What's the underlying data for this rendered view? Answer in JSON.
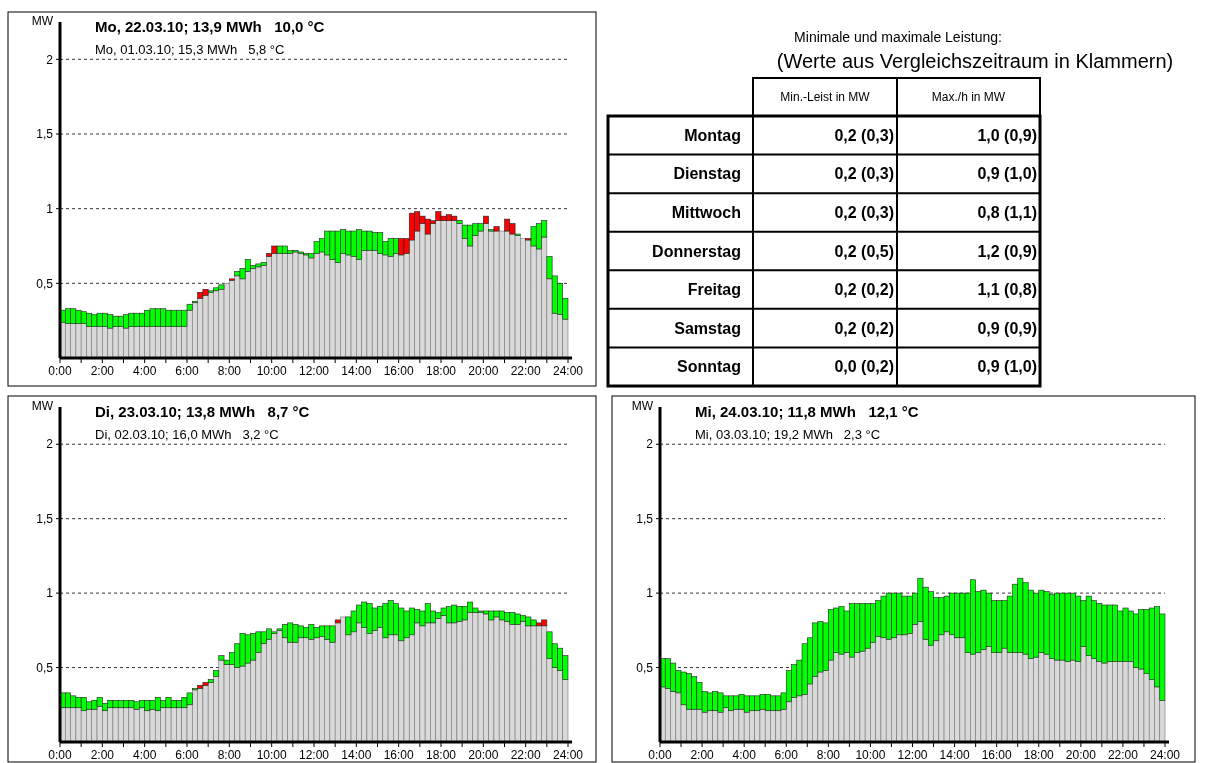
{
  "chart_data": [
    {
      "type": "bar",
      "stacked": true,
      "title": "Mo, 22.03.10; 13,9 MWh   10,0 °C",
      "subtitle": "Mo, 01.03.10; 15,3 MWh   5,8 °C",
      "ylabel": "MW",
      "x": [
        0.125,
        0.375,
        0.625,
        0.875,
        1.125,
        1.375,
        1.625,
        1.875,
        2.125,
        2.375,
        2.625,
        2.875,
        3.125,
        3.375,
        3.625,
        3.875,
        4.125,
        4.375,
        4.625,
        4.875,
        5.125,
        5.375,
        5.625,
        5.875,
        6.125,
        6.375,
        6.625,
        6.875,
        7.125,
        7.375,
        7.625,
        7.875,
        8.125,
        8.375,
        8.625,
        8.875,
        9.125,
        9.375,
        9.625,
        9.875,
        10.125,
        10.375,
        10.625,
        10.875,
        11.125,
        11.375,
        11.625,
        11.875,
        12.125,
        12.375,
        12.625,
        12.875,
        13.125,
        13.375,
        13.625,
        13.875,
        14.125,
        14.375,
        14.625,
        14.875,
        15.125,
        15.375,
        15.625,
        15.875,
        16.125,
        16.375,
        16.625,
        16.875,
        17.125,
        17.375,
        17.625,
        17.875,
        18.125,
        18.375,
        18.625,
        18.875,
        19.125,
        19.375,
        19.625,
        19.875,
        20.125,
        20.375,
        20.625,
        20.875,
        21.125,
        21.375,
        21.625,
        21.875,
        22.125,
        22.375,
        22.625,
        22.875,
        23.125,
        23.375,
        23.625,
        23.875
      ],
      "series": [
        {
          "color": "#d9d9d9",
          "values": [
            0.24,
            0.23,
            0.23,
            0.23,
            0.23,
            0.21,
            0.21,
            0.21,
            0.21,
            0.2,
            0.21,
            0.21,
            0.2,
            0.21,
            0.21,
            0.21,
            0.21,
            0.21,
            0.21,
            0.21,
            0.21,
            0.21,
            0.21,
            0.21,
            0.32,
            0.37,
            0.4,
            0.42,
            0.44,
            0.45,
            0.46,
            0.5,
            0.52,
            0.55,
            0.53,
            0.58,
            0.6,
            0.61,
            0.62,
            0.68,
            0.7,
            0.7,
            0.7,
            0.7,
            0.71,
            0.7,
            0.69,
            0.67,
            0.7,
            0.71,
            0.69,
            0.66,
            0.64,
            0.7,
            0.69,
            0.68,
            0.66,
            0.72,
            0.72,
            0.72,
            0.7,
            0.69,
            0.68,
            0.7,
            0.69,
            0.7,
            0.79,
            0.85,
            0.9,
            0.83,
            0.9,
            0.92,
            0.92,
            0.92,
            0.92,
            0.9,
            0.8,
            0.75,
            0.82,
            0.85,
            0.9,
            0.85,
            0.85,
            0.85,
            0.85,
            0.83,
            0.82,
            0.8,
            0.79,
            0.75,
            0.73,
            0.81,
            0.53,
            0.3,
            0.29,
            0.26
          ]
        },
        {
          "color": "#00ff00",
          "values": [
            0.08,
            0.1,
            0.1,
            0.09,
            0.08,
            0.09,
            0.08,
            0.09,
            0.09,
            0.09,
            0.07,
            0.07,
            0.09,
            0.09,
            0.09,
            0.09,
            0.11,
            0.12,
            0.12,
            0.12,
            0.11,
            0.11,
            0.11,
            0.11,
            0.04,
            0.01,
            null,
            null,
            0.01,
            0.02,
            0.03,
            null,
            null,
            0.03,
            0.07,
            0.08,
            0.02,
            0.02,
            0.02,
            null,
            null,
            0.05,
            0.05,
            0.02,
            0.01,
            0.01,
            0.01,
            0.03,
            0.08,
            0.09,
            0.16,
            0.19,
            0.21,
            0.16,
            0.16,
            0.17,
            0.2,
            0.13,
            0.13,
            0.12,
            0.14,
            0.09,
            0.12,
            0.1,
            null,
            null,
            null,
            null,
            null,
            null,
            null,
            null,
            null,
            null,
            null,
            0.02,
            0.09,
            0.14,
            0.08,
            0.05,
            null,
            0.01,
            null,
            null,
            null,
            null,
            0.01,
            null,
            null,
            0.13,
            0.17,
            0.11,
            0.15,
            0.25,
            0.21,
            0.14
          ]
        },
        {
          "color": "#ff0000",
          "values": [
            null,
            null,
            null,
            null,
            null,
            null,
            null,
            null,
            null,
            null,
            null,
            null,
            null,
            null,
            null,
            null,
            null,
            null,
            null,
            null,
            null,
            null,
            null,
            null,
            null,
            null,
            0.04,
            0.04,
            null,
            null,
            null,
            null,
            0.01,
            null,
            null,
            null,
            null,
            null,
            null,
            0.02,
            0.05,
            null,
            null,
            null,
            null,
            null,
            null,
            null,
            null,
            null,
            null,
            null,
            null,
            null,
            null,
            null,
            null,
            null,
            null,
            null,
            null,
            null,
            null,
            null,
            0.11,
            0.1,
            0.18,
            0.13,
            0.05,
            0.1,
            0.02,
            0.06,
            0.03,
            0.04,
            0.03,
            null,
            null,
            null,
            null,
            null,
            0.05,
            null,
            0.03,
            null,
            0.08,
            0.07,
            null,
            null,
            0.01,
            null,
            null,
            null,
            null,
            null,
            null,
            null
          ]
        }
      ],
      "xlim": [
        0,
        24
      ],
      "ylim": [
        0,
        2.25
      ],
      "xticks": [
        {
          "value": 0,
          "label": "0:00"
        },
        {
          "value": 1,
          "label": null
        },
        {
          "value": 2,
          "label": "2:00"
        },
        {
          "value": 3,
          "label": null
        },
        {
          "value": 4,
          "label": "4:00"
        },
        {
          "value": 5,
          "label": null
        },
        {
          "value": 6,
          "label": "6:00"
        },
        {
          "value": 7,
          "label": null
        },
        {
          "value": 8,
          "label": "8:00"
        },
        {
          "value": 9,
          "label": null
        },
        {
          "value": 10,
          "label": "10:00"
        },
        {
          "value": 11,
          "label": null
        },
        {
          "value": 12,
          "label": "12:00"
        },
        {
          "value": 13,
          "label": null
        },
        {
          "value": 14,
          "label": "14:00"
        },
        {
          "value": 15,
          "label": null
        },
        {
          "value": 16,
          "label": "16:00"
        },
        {
          "value": 17,
          "label": null
        },
        {
          "value": 18,
          "label": "18:00"
        },
        {
          "value": 19,
          "label": null
        },
        {
          "value": 20,
          "label": "20:00"
        },
        {
          "value": 21,
          "label": null
        },
        {
          "value": 22,
          "label": "22:00"
        },
        {
          "value": 23,
          "label": null
        },
        {
          "value": 24,
          "label": "24:00"
        }
      ],
      "yticks": [
        {
          "value": 0.5,
          "label": "0,5"
        },
        {
          "value": 1,
          "label": "1"
        },
        {
          "value": 1.5,
          "label": "1,5"
        },
        {
          "value": 2,
          "label": "2"
        }
      ],
      "grid": "y"
    },
    {
      "type": "other",
      "title": "Minimale und maximale Leistung:",
      "subtitle": "(Werte aus Vergleichszeitraum in Klammern)",
      "categories": [
        "Min.-Leist in MW",
        "Max./h in MW"
      ],
      "y_categories": [
        "Montag",
        "Dienstag",
        "Mittwoch",
        "Donnerstag",
        "Freitag",
        "Samstag",
        "Sonntag"
      ],
      "cell_labels": [
        [
          "0,2 (0,3)",
          "1,0 (0,9)"
        ],
        [
          "0,2 (0,3)",
          "0,9 (1,0)"
        ],
        [
          "0,2 (0,3)",
          "0,8 (1,1)"
        ],
        [
          "0,2 (0,5)",
          "1,2 (0,9)"
        ],
        [
          "0,2 (0,2)",
          "1,1 (0,8)"
        ],
        [
          "0,2 (0,2)",
          "0,9 (0,9)"
        ],
        [
          "0,0 (0,2)",
          "0,9 (1,0)"
        ]
      ]
    },
    {
      "type": "bar",
      "stacked": true,
      "title": "Di, 23.03.10; 13,8 MWh   8,7 °C",
      "subtitle": "Di, 02.03.10; 16,0 MWh   3,2 °C",
      "ylabel": "MW",
      "x": [
        0.125,
        0.375,
        0.625,
        0.875,
        1.125,
        1.375,
        1.625,
        1.875,
        2.125,
        2.375,
        2.625,
        2.875,
        3.125,
        3.375,
        3.625,
        3.875,
        4.125,
        4.375,
        4.625,
        4.875,
        5.125,
        5.375,
        5.625,
        5.875,
        6.125,
        6.375,
        6.625,
        6.875,
        7.125,
        7.375,
        7.625,
        7.875,
        8.125,
        8.375,
        8.625,
        8.875,
        9.125,
        9.375,
        9.625,
        9.875,
        10.125,
        10.375,
        10.625,
        10.875,
        11.125,
        11.375,
        11.625,
        11.875,
        12.125,
        12.375,
        12.625,
        12.875,
        13.125,
        13.375,
        13.625,
        13.875,
        14.125,
        14.375,
        14.625,
        14.875,
        15.125,
        15.375,
        15.625,
        15.875,
        16.125,
        16.375,
        16.625,
        16.875,
        17.125,
        17.375,
        17.625,
        17.875,
        18.125,
        18.375,
        18.625,
        18.875,
        19.125,
        19.375,
        19.625,
        19.875,
        20.125,
        20.375,
        20.625,
        20.875,
        21.125,
        21.375,
        21.625,
        21.875,
        22.125,
        22.375,
        22.625,
        22.875,
        23.125,
        23.375,
        23.625,
        23.875
      ],
      "series": [
        {
          "color": "#d9d9d9",
          "values": [
            0.23,
            0.23,
            0.23,
            0.23,
            0.21,
            0.22,
            0.22,
            0.24,
            0.21,
            0.23,
            0.23,
            0.23,
            0.23,
            0.23,
            0.22,
            0.23,
            0.21,
            0.22,
            0.21,
            0.23,
            0.23,
            0.23,
            0.23,
            0.23,
            0.25,
            0.35,
            0.36,
            0.38,
            0.4,
            0.44,
            0.55,
            0.52,
            0.52,
            0.5,
            0.51,
            0.53,
            0.55,
            0.6,
            0.66,
            0.69,
            0.73,
            0.75,
            0.7,
            0.67,
            0.67,
            0.7,
            0.7,
            0.69,
            0.7,
            0.71,
            0.69,
            0.67,
            0.8,
            0.84,
            0.72,
            0.74,
            0.8,
            0.77,
            0.73,
            0.75,
            0.77,
            0.7,
            0.72,
            0.72,
            0.68,
            0.7,
            0.72,
            0.8,
            0.78,
            0.8,
            0.8,
            0.83,
            0.85,
            0.8,
            0.8,
            0.81,
            0.82,
            0.87,
            0.87,
            0.87,
            0.86,
            0.82,
            0.84,
            0.82,
            0.81,
            0.79,
            0.79,
            0.81,
            0.78,
            0.78,
            0.78,
            0.78,
            0.56,
            0.5,
            0.48,
            0.42
          ]
        },
        {
          "color": "#00ff00",
          "values": [
            0.1,
            0.1,
            0.08,
            0.07,
            0.09,
            0.05,
            0.06,
            0.06,
            0.05,
            0.05,
            0.05,
            0.05,
            0.05,
            0.05,
            0.05,
            0.05,
            0.07,
            0.06,
            0.09,
            0.05,
            0.07,
            0.05,
            0.05,
            0.07,
            0.08,
            0.01,
            null,
            null,
            0.02,
            0.04,
            0.03,
            0.03,
            0.08,
            0.16,
            0.22,
            0.19,
            0.18,
            0.14,
            0.08,
            0.07,
            0.01,
            0.01,
            0.09,
            0.13,
            0.12,
            0.08,
            0.07,
            0.1,
            0.07,
            0.07,
            0.09,
            0.11,
            null,
            null,
            0.12,
            0.14,
            0.12,
            0.17,
            0.2,
            0.15,
            0.14,
            0.23,
            0.23,
            0.21,
            0.22,
            0.18,
            0.18,
            0.09,
            0.1,
            0.13,
            0.08,
            0.04,
            0.05,
            0.11,
            0.12,
            0.1,
            0.09,
            0.07,
            0.03,
            0.01,
            0.02,
            0.06,
            0.04,
            0.06,
            0.06,
            0.08,
            0.07,
            0.04,
            0.06,
            0.04,
            null,
            null,
            0.18,
            0.16,
            0.15,
            0.16
          ]
        },
        {
          "color": "#ff0000",
          "values": [
            null,
            null,
            null,
            null,
            null,
            null,
            null,
            null,
            null,
            null,
            null,
            null,
            null,
            null,
            null,
            null,
            null,
            null,
            null,
            null,
            null,
            null,
            null,
            null,
            null,
            null,
            0.02,
            0.02,
            null,
            null,
            null,
            null,
            null,
            null,
            null,
            null,
            null,
            null,
            null,
            null,
            null,
            null,
            null,
            null,
            null,
            null,
            null,
            null,
            null,
            null,
            null,
            null,
            0.02,
            null,
            null,
            null,
            null,
            null,
            null,
            null,
            null,
            null,
            null,
            null,
            null,
            null,
            null,
            null,
            null,
            null,
            null,
            null,
            null,
            null,
            null,
            null,
            null,
            null,
            null,
            null,
            null,
            null,
            null,
            null,
            null,
            null,
            null,
            null,
            null,
            null,
            0.02,
            0.04,
            null,
            null,
            null,
            null
          ]
        }
      ],
      "xlim": [
        0,
        24
      ],
      "ylim": [
        0,
        2.25
      ],
      "xticks": [
        {
          "value": 0,
          "label": "0:00"
        },
        {
          "value": 1,
          "label": null
        },
        {
          "value": 2,
          "label": "2:00"
        },
        {
          "value": 3,
          "label": null
        },
        {
          "value": 4,
          "label": "4:00"
        },
        {
          "value": 5,
          "label": null
        },
        {
          "value": 6,
          "label": "6:00"
        },
        {
          "value": 7,
          "label": null
        },
        {
          "value": 8,
          "label": "8:00"
        },
        {
          "value": 9,
          "label": null
        },
        {
          "value": 10,
          "label": "10:00"
        },
        {
          "value": 11,
          "label": null
        },
        {
          "value": 12,
          "label": "12:00"
        },
        {
          "value": 13,
          "label": null
        },
        {
          "value": 14,
          "label": "14:00"
        },
        {
          "value": 15,
          "label": null
        },
        {
          "value": 16,
          "label": "16:00"
        },
        {
          "value": 17,
          "label": null
        },
        {
          "value": 18,
          "label": "18:00"
        },
        {
          "value": 19,
          "label": null
        },
        {
          "value": 20,
          "label": "20:00"
        },
        {
          "value": 21,
          "label": null
        },
        {
          "value": 22,
          "label": "22:00"
        },
        {
          "value": 23,
          "label": null
        },
        {
          "value": 24,
          "label": "24:00"
        }
      ],
      "yticks": [
        {
          "value": 0.5,
          "label": "0,5"
        },
        {
          "value": 1,
          "label": "1"
        },
        {
          "value": 1.5,
          "label": "1,5"
        },
        {
          "value": 2,
          "label": "2"
        }
      ],
      "grid": "y"
    },
    {
      "type": "bar",
      "stacked": true,
      "title": "Mi, 24.03.10; 11,8 MWh   12,1 °C",
      "subtitle": "Mi, 03.03.10; 19,2 MWh   2,3 °C",
      "ylabel": "MW",
      "x": [
        0.125,
        0.375,
        0.625,
        0.875,
        1.125,
        1.375,
        1.625,
        1.875,
        2.125,
        2.375,
        2.625,
        2.875,
        3.125,
        3.375,
        3.625,
        3.875,
        4.125,
        4.375,
        4.625,
        4.875,
        5.125,
        5.375,
        5.625,
        5.875,
        6.125,
        6.375,
        6.625,
        6.875,
        7.125,
        7.375,
        7.625,
        7.875,
        8.125,
        8.375,
        8.625,
        8.875,
        9.125,
        9.375,
        9.625,
        9.875,
        10.125,
        10.375,
        10.625,
        10.875,
        11.125,
        11.375,
        11.625,
        11.875,
        12.125,
        12.375,
        12.625,
        12.875,
        13.125,
        13.375,
        13.625,
        13.875,
        14.125,
        14.375,
        14.625,
        14.875,
        15.125,
        15.375,
        15.625,
        15.875,
        16.125,
        16.375,
        16.625,
        16.875,
        17.125,
        17.375,
        17.625,
        17.875,
        18.125,
        18.375,
        18.625,
        18.875,
        19.125,
        19.375,
        19.625,
        19.875,
        20.125,
        20.375,
        20.625,
        20.875,
        21.125,
        21.375,
        21.625,
        21.875,
        22.125,
        22.375,
        22.625,
        22.875,
        23.125,
        23.375,
        23.625,
        23.875
      ],
      "series": [
        {
          "color": "#d9d9d9",
          "values": [
            0.37,
            0.36,
            0.34,
            0.33,
            0.25,
            0.22,
            0.22,
            0.22,
            0.2,
            0.21,
            0.21,
            0.2,
            0.23,
            0.21,
            0.22,
            0.22,
            0.2,
            0.21,
            0.21,
            0.22,
            0.21,
            0.21,
            0.21,
            0.22,
            0.27,
            0.3,
            0.31,
            0.32,
            0.39,
            0.44,
            0.47,
            0.48,
            0.55,
            0.6,
            0.59,
            0.6,
            0.57,
            0.6,
            0.61,
            0.63,
            0.67,
            0.71,
            0.7,
            0.69,
            0.7,
            0.72,
            0.72,
            0.73,
            0.79,
            0.81,
            0.69,
            0.65,
            0.68,
            0.72,
            0.74,
            0.72,
            0.7,
            0.7,
            0.6,
            0.59,
            0.6,
            0.62,
            0.64,
            0.6,
            0.6,
            0.63,
            0.6,
            0.6,
            0.6,
            0.59,
            0.56,
            0.57,
            0.6,
            0.59,
            0.56,
            0.55,
            0.55,
            0.54,
            0.55,
            0.54,
            0.64,
            0.58,
            0.56,
            0.54,
            0.53,
            0.54,
            0.54,
            0.54,
            0.54,
            0.54,
            0.5,
            0.49,
            0.46,
            0.42,
            0.37,
            0.28
          ]
        },
        {
          "color": "#00ff00",
          "values": [
            0.19,
            0.2,
            0.19,
            0.15,
            0.22,
            0.24,
            0.22,
            0.18,
            0.14,
            0.12,
            0.13,
            0.13,
            0.08,
            0.1,
            0.09,
            0.1,
            0.11,
            0.1,
            0.1,
            0.1,
            0.11,
            0.1,
            0.1,
            0.11,
            0.21,
            0.22,
            0.24,
            0.34,
            0.31,
            0.36,
            0.34,
            0.32,
            0.34,
            0.3,
            0.32,
            0.28,
            0.36,
            0.33,
            0.32,
            0.3,
            0.26,
            0.24,
            0.28,
            0.31,
            0.3,
            0.28,
            0.26,
            0.25,
            0.21,
            0.29,
            0.35,
            0.36,
            0.29,
            0.25,
            0.24,
            0.28,
            0.3,
            0.3,
            0.4,
            0.5,
            0.41,
            0.4,
            0.36,
            0.35,
            0.35,
            0.32,
            0.38,
            0.46,
            0.5,
            0.48,
            0.46,
            0.43,
            0.42,
            0.42,
            0.43,
            0.45,
            0.45,
            0.46,
            0.45,
            0.44,
            0.31,
            0.4,
            0.39,
            0.39,
            0.39,
            0.38,
            0.38,
            0.34,
            0.36,
            0.34,
            0.36,
            0.4,
            0.43,
            0.48,
            0.54,
            0.58
          ]
        }
      ],
      "xlim": [
        0,
        24
      ],
      "ylim": [
        0,
        2.25
      ],
      "xticks": [
        {
          "value": 0,
          "label": "0:00"
        },
        {
          "value": 1,
          "label": null
        },
        {
          "value": 2,
          "label": "2:00"
        },
        {
          "value": 3,
          "label": null
        },
        {
          "value": 4,
          "label": "4:00"
        },
        {
          "value": 5,
          "label": null
        },
        {
          "value": 6,
          "label": "6:00"
        },
        {
          "value": 7,
          "label": null
        },
        {
          "value": 8,
          "label": "8:00"
        },
        {
          "value": 9,
          "label": null
        },
        {
          "value": 10,
          "label": "10:00"
        },
        {
          "value": 11,
          "label": null
        },
        {
          "value": 12,
          "label": "12:00"
        },
        {
          "value": 13,
          "label": null
        },
        {
          "value": 14,
          "label": "14:00"
        },
        {
          "value": 15,
          "label": null
        },
        {
          "value": 16,
          "label": "16:00"
        },
        {
          "value": 17,
          "label": null
        },
        {
          "value": 18,
          "label": "18:00"
        },
        {
          "value": 19,
          "label": null
        },
        {
          "value": 20,
          "label": "20:00"
        },
        {
          "value": 21,
          "label": null
        },
        {
          "value": 22,
          "label": "22:00"
        },
        {
          "value": 23,
          "label": null
        },
        {
          "value": 24,
          "label": "24:00"
        }
      ],
      "yticks": [
        {
          "value": 0.5,
          "label": "0,5"
        },
        {
          "value": 1,
          "label": "1"
        },
        {
          "value": 1.5,
          "label": "1,5"
        },
        {
          "value": 2,
          "label": "2"
        }
      ],
      "grid": "y"
    }
  ]
}
